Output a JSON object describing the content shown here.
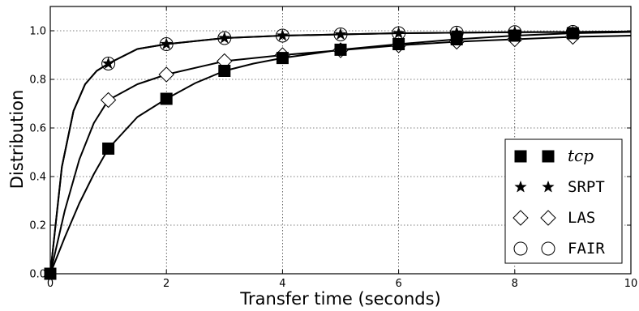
{
  "chart_data": {
    "type": "line",
    "xlabel": "Transfer time (seconds)",
    "ylabel": "Distribution",
    "xlim": [
      0,
      10
    ],
    "ylim": [
      0,
      1.1
    ],
    "xticks": [
      0,
      2,
      4,
      6,
      8,
      10
    ],
    "yticks": [
      0.0,
      0.2,
      0.4,
      0.6,
      0.8,
      1.0
    ],
    "x_tick_labels": [
      "0",
      "2",
      "4",
      "6",
      "8",
      "10"
    ],
    "y_tick_labels": [
      "0.0",
      "0.2",
      "0.4",
      "0.6",
      "0.8",
      "1.0"
    ],
    "grid": true,
    "legend_position": "bottom-right",
    "series": [
      {
        "name": "tcp",
        "marker": "filled-square",
        "curve": [
          [
            0,
            0
          ],
          [
            0.25,
            0.15
          ],
          [
            0.5,
            0.29
          ],
          [
            0.75,
            0.41
          ],
          [
            1,
            0.515
          ],
          [
            1.5,
            0.645
          ],
          [
            2,
            0.72
          ],
          [
            2.5,
            0.785
          ],
          [
            3,
            0.835
          ],
          [
            3.5,
            0.865
          ],
          [
            4,
            0.888
          ],
          [
            5,
            0.922
          ],
          [
            6,
            0.945
          ],
          [
            7,
            0.965
          ],
          [
            8,
            0.98
          ],
          [
            9,
            0.99
          ],
          [
            10,
            0.995
          ]
        ],
        "markers": [
          [
            0,
            0
          ],
          [
            1,
            0.515
          ],
          [
            2,
            0.72
          ],
          [
            3,
            0.835
          ],
          [
            4,
            0.888
          ],
          [
            5,
            0.922
          ],
          [
            6,
            0.945
          ],
          [
            7,
            0.965
          ],
          [
            8,
            0.98
          ],
          [
            9,
            0.99
          ]
        ]
      },
      {
        "name": "SRPT",
        "marker": "star",
        "curve": [
          [
            0,
            0
          ],
          [
            0.2,
            0.44
          ],
          [
            0.4,
            0.67
          ],
          [
            0.6,
            0.78
          ],
          [
            0.8,
            0.835
          ],
          [
            1,
            0.865
          ],
          [
            1.5,
            0.925
          ],
          [
            2,
            0.945
          ],
          [
            3,
            0.97
          ],
          [
            4,
            0.98
          ],
          [
            5,
            0.985
          ],
          [
            6,
            0.99
          ],
          [
            7,
            0.992
          ],
          [
            8,
            0.994
          ],
          [
            9,
            0.995
          ],
          [
            10,
            0.997
          ]
        ],
        "markers": [
          [
            1,
            0.865
          ],
          [
            2,
            0.945
          ],
          [
            3,
            0.97
          ],
          [
            4,
            0.98
          ],
          [
            5,
            0.985
          ],
          [
            6,
            0.99
          ],
          [
            7,
            0.992
          ],
          [
            8,
            0.994
          ],
          [
            9,
            0.995
          ]
        ]
      },
      {
        "name": "LAS",
        "marker": "open-diamond",
        "curve": [
          [
            0,
            0
          ],
          [
            0.25,
            0.26
          ],
          [
            0.5,
            0.47
          ],
          [
            0.75,
            0.62
          ],
          [
            1,
            0.715
          ],
          [
            1.5,
            0.78
          ],
          [
            2,
            0.82
          ],
          [
            3,
            0.875
          ],
          [
            4,
            0.9
          ],
          [
            5,
            0.92
          ],
          [
            6,
            0.94
          ],
          [
            7,
            0.955
          ],
          [
            8,
            0.965
          ],
          [
            9,
            0.975
          ],
          [
            10,
            0.98
          ]
        ],
        "markers": [
          [
            1,
            0.715
          ],
          [
            2,
            0.82
          ],
          [
            3,
            0.875
          ],
          [
            4,
            0.9
          ],
          [
            5,
            0.92
          ],
          [
            6,
            0.94
          ],
          [
            7,
            0.955
          ],
          [
            8,
            0.965
          ],
          [
            9,
            0.975
          ]
        ]
      },
      {
        "name": "FAIR",
        "marker": "open-circle",
        "curve": [
          [
            0,
            0
          ],
          [
            0.2,
            0.44
          ],
          [
            0.4,
            0.67
          ],
          [
            0.6,
            0.78
          ],
          [
            0.8,
            0.835
          ],
          [
            1,
            0.865
          ],
          [
            1.5,
            0.925
          ],
          [
            2,
            0.945
          ],
          [
            3,
            0.97
          ],
          [
            4,
            0.98
          ],
          [
            5,
            0.985
          ],
          [
            6,
            0.99
          ],
          [
            7,
            0.992
          ],
          [
            8,
            0.994
          ],
          [
            9,
            0.995
          ],
          [
            10,
            0.997
          ]
        ],
        "markers": [
          [
            1,
            0.865
          ],
          [
            2,
            0.945
          ],
          [
            3,
            0.97
          ],
          [
            4,
            0.98
          ],
          [
            5,
            0.985
          ],
          [
            6,
            0.99
          ],
          [
            7,
            0.992
          ],
          [
            8,
            0.994
          ],
          [
            9,
            0.995
          ]
        ]
      }
    ]
  }
}
